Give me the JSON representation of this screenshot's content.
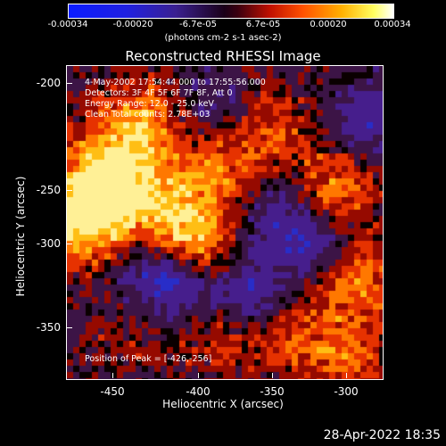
{
  "colorbar": {
    "ticks": [
      "-0.00034",
      "-0.00020",
      "-6.7e-05",
      "6.7e-05",
      "0.00020",
      "0.00034"
    ],
    "units": "(photons cm-2 s-1 asec-2)"
  },
  "title": "Reconstructed RHESSI Image",
  "annotations": {
    "time": "4-May-2002 17:54:44.000 to 17:55:56.000",
    "detectors": "Detectors: 3F 4F 5F 6F 7F 8F, Att 0",
    "energy": "Energy Range: 12.0 - 25.0 keV",
    "clean": "Clean     Total counts: 2.78E+03",
    "peak": "Position of Peak = [-426,-256]"
  },
  "axes": {
    "xlabel": "Heliocentric X (arcsec)",
    "ylabel": "Heliocentric Y (arcsec)",
    "xticks": [
      "-450",
      "-400",
      "-350",
      "-300"
    ],
    "yticks": [
      "-200",
      "-250",
      "-300",
      "-350"
    ]
  },
  "timestamp": "28-Apr-2022 18:35"
}
